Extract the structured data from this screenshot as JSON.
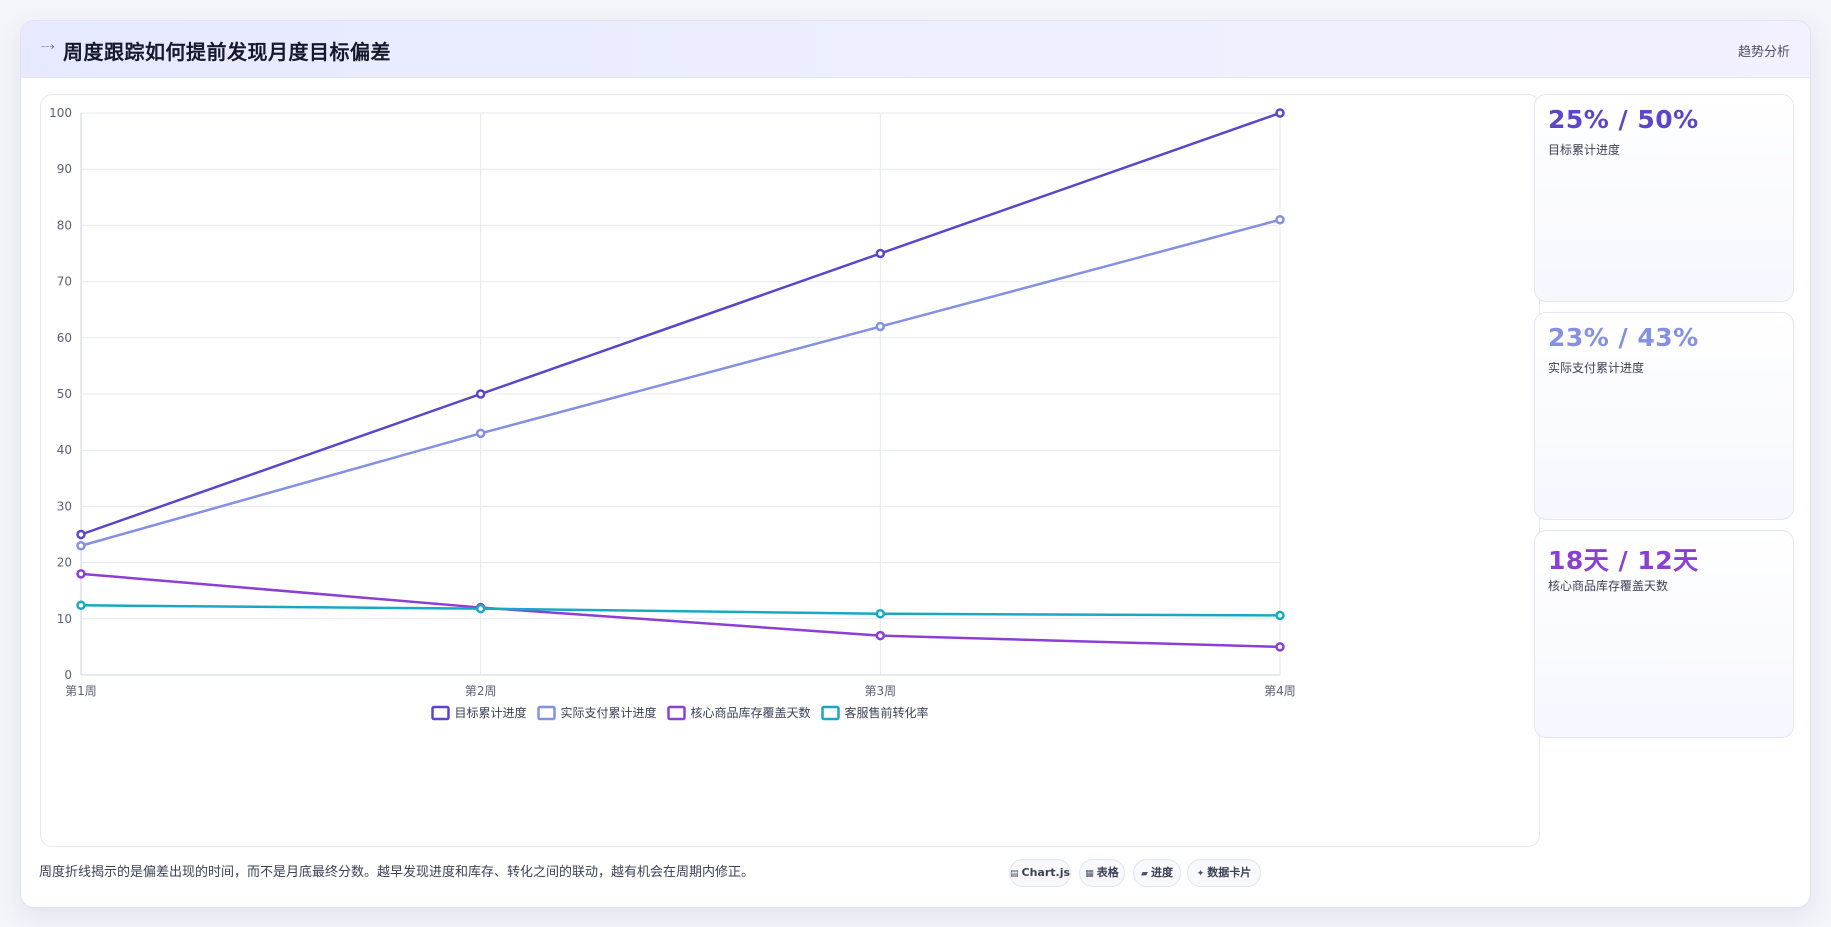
{
  "header": {
    "icon": "trend-arrow-icon",
    "title": "周度跟踪如何提前发现月度目标偏差",
    "tag": "趋势分析"
  },
  "chart_data": {
    "type": "line",
    "categories": [
      "第1周",
      "第2周",
      "第3周",
      "第4周"
    ],
    "ylim": [
      0,
      100
    ],
    "yticks": [
      0,
      10,
      20,
      30,
      40,
      50,
      60,
      70,
      80,
      90,
      100
    ],
    "grid": true,
    "legend_position": "bottom-center",
    "series": [
      {
        "name": "目标累计进度",
        "values": [
          25,
          50,
          75,
          100
        ],
        "color": "#5b45c9"
      },
      {
        "name": "实际支付累计进度",
        "values": [
          23,
          43,
          62,
          81
        ],
        "color": "#8590e3"
      },
      {
        "name": "核心商品库存覆盖天数",
        "values": [
          18,
          12,
          7,
          5
        ],
        "color": "#8b3fd4"
      },
      {
        "name": "客服售前转化率",
        "values": [
          12.4,
          11.8,
          10.9,
          10.6
        ],
        "color": "#17a9c3"
      }
    ]
  },
  "kpis": [
    {
      "value": "25% / 50%",
      "label": "目标累计进度",
      "color": "#5b45c9"
    },
    {
      "value": "23% / 43%",
      "label": "实际支付累计进度",
      "color": "#8590e3"
    },
    {
      "value": "18天 / 12天",
      "label": "核心商品库存覆盖天数",
      "color": "#8b3fd4"
    }
  ],
  "footnote": "周度折线揭示的是偏差出现的时间，而不是月底最终分数。越早发现进度和库存、转化之间的联动，越有机会在周期内修正。",
  "chips": [
    {
      "icon": "chart-icon",
      "glyph": "▤",
      "label": "Chart.js"
    },
    {
      "icon": "table-icon",
      "glyph": "▦",
      "label": "表格"
    },
    {
      "icon": "progress-icon",
      "glyph": "▰",
      "label": "进度"
    },
    {
      "icon": "sparkle-icon",
      "glyph": "✦",
      "label": "数据卡片"
    }
  ]
}
